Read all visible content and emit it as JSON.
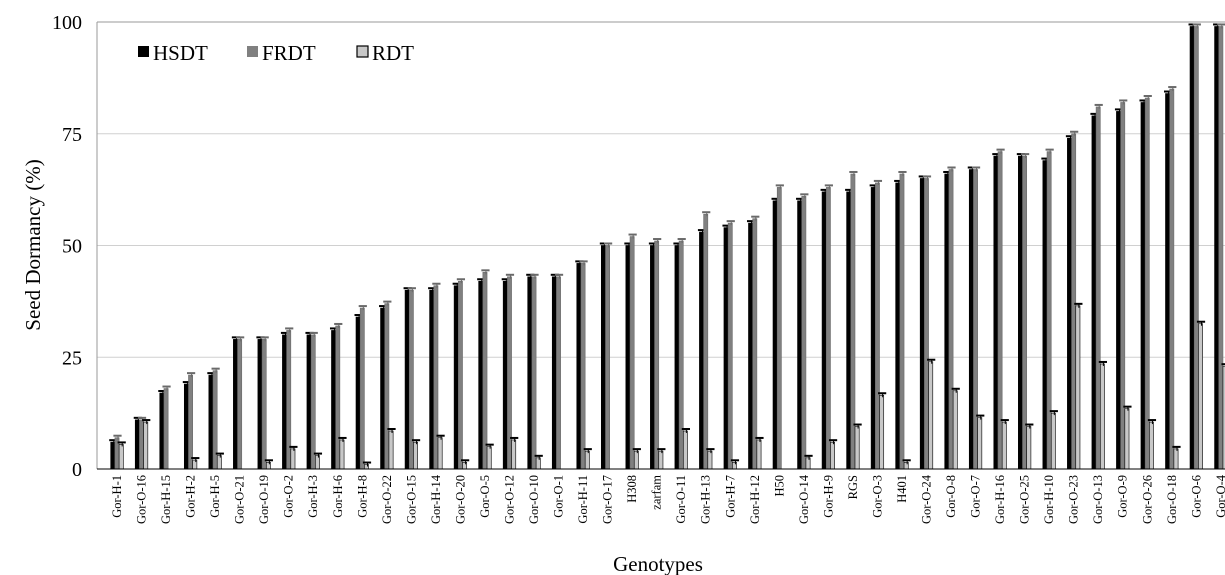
{
  "chart_data": {
    "type": "bar",
    "title": "",
    "xlabel": "Genotypes",
    "ylabel": "Seed Dormancy (%)",
    "ylim": [
      0,
      100
    ],
    "yticks": [
      "0",
      "25",
      "50",
      "75",
      "100"
    ],
    "grid": true,
    "legend_position": "top-left",
    "categories": [
      "Gor-H-1",
      "Gor-O-16",
      "Gor-H-15",
      "Gor-H-2",
      "Gor-H-5",
      "Gor-O-21",
      "Gor-O-19",
      "Gor-O-2",
      "Gor-H-3",
      "Gor-H-6",
      "Gor-H-8",
      "Gor-O-22",
      "Gor-O-15",
      "Gor-H-14",
      "Gor-O-20",
      "Gor-O-5",
      "Gor-O-12",
      "Gor-O-10",
      "Gor-O-1",
      "Gor-H-11",
      "Gor-O-17",
      "H308",
      "zarfam",
      "Gor-O-11",
      "Gor-H-13",
      "Gor-H-7",
      "Gor-H-12",
      "H50",
      "Gor-O-14",
      "Gor-H-9",
      "RGS",
      "Gor-O-3",
      "H401",
      "Gor-O-24",
      "Gor-O-8",
      "Gor-O-7",
      "Gor-H-16",
      "Gor-O-25",
      "Gor-H-10",
      "Gor-O-23",
      "Gor-O-13",
      "Gor-O-9",
      "Gor-O-26",
      "Gor-O-18",
      "Gor-O-6",
      "Gor-O-4"
    ],
    "series": [
      {
        "name": "HSDT",
        "color": "#000000",
        "values": [
          6,
          11,
          17,
          19,
          21,
          29,
          29,
          30,
          30,
          31,
          34,
          36,
          40,
          40,
          41,
          42,
          42,
          43,
          43,
          46,
          50,
          50,
          50,
          50,
          53,
          54,
          55,
          60,
          60,
          62,
          62,
          63,
          64,
          65,
          66,
          67,
          70,
          70,
          69,
          74,
          79,
          80,
          82,
          84,
          99,
          99
        ]
      },
      {
        "name": "FRDT",
        "color": "#808080",
        "values": [
          7,
          11,
          18,
          21,
          22,
          29,
          29,
          31,
          30,
          32,
          36,
          37,
          40,
          41,
          42,
          44,
          43,
          43,
          43,
          46,
          50,
          52,
          51,
          51,
          57,
          55,
          56,
          63,
          61,
          63,
          66,
          64,
          66,
          65,
          67,
          67,
          71,
          70,
          71,
          75,
          81,
          82,
          83,
          85,
          99,
          99
        ]
      },
      {
        "name": "RDT",
        "color": "#c8c8c8",
        "values": [
          5.5,
          10.5,
          0,
          2,
          3,
          0,
          1.5,
          4.5,
          3,
          6.5,
          1,
          8.5,
          6,
          7,
          1.5,
          5,
          6.5,
          2.5,
          0,
          4,
          0,
          4,
          4,
          8.5,
          4,
          1.5,
          6.5,
          0,
          2.5,
          6,
          9.5,
          16.5,
          1.5,
          24,
          17.5,
          11.5,
          10.5,
          9.5,
          12.5,
          36.5,
          23.5,
          13.5,
          10.5,
          4.5,
          32.5,
          23
        ]
      }
    ]
  }
}
